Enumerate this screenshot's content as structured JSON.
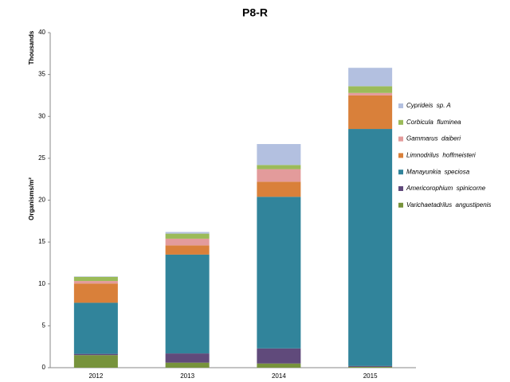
{
  "chart_data": {
    "type": "stacked_bar",
    "title": "P8-R",
    "y_label_top": "Thousands",
    "y_label": "Organisms/m²",
    "categories": [
      "2012",
      "2013",
      "2014",
      "2015"
    ],
    "series": [
      {
        "name": "Varichaetadrilus  angustipenis",
        "color": "#77933c",
        "values": [
          1.5,
          0.6,
          0.5,
          0.1
        ]
      },
      {
        "name": "Americorophium  spinicorne",
        "color": "#604a7b",
        "values": [
          0.15,
          1.1,
          1.8,
          0.1
        ]
      },
      {
        "name": "Manayunkia  speciosa",
        "color": "#31849b",
        "values": [
          6.1,
          11.8,
          18.1,
          28.3
        ]
      },
      {
        "name": "Limnodrilus  hoffmeisteri",
        "color": "#d9803a",
        "values": [
          2.3,
          1.1,
          1.8,
          4.0
        ]
      },
      {
        "name": "Gammarus  daiberi",
        "color": "#e39b9b",
        "values": [
          0.3,
          0.8,
          1.5,
          0.3
        ]
      },
      {
        "name": "Corbicula  fluminea",
        "color": "#9bbb59",
        "values": [
          0.5,
          0.6,
          0.5,
          0.8
        ]
      },
      {
        "name": "Cyprideis  sp. A",
        "color": "#b3c0e0",
        "values": [
          0.05,
          0.2,
          2.5,
          2.2
        ]
      }
    ],
    "ylim": [
      0,
      40
    ],
    "yticks": [
      0,
      5,
      10,
      15,
      20,
      25,
      30,
      35,
      40
    ],
    "legend": "right"
  }
}
